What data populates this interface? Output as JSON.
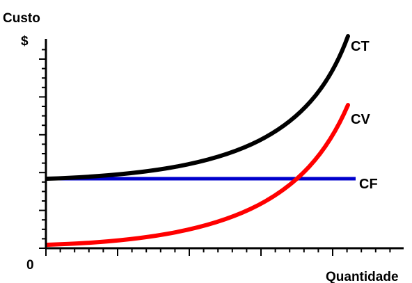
{
  "chart_data": {
    "type": "line",
    "title": "",
    "ylabel": "Custo",
    "ylabel_unit": "$",
    "xlabel": "Quantidade",
    "origin_label": "0",
    "axis_values_shown": false,
    "grid": false,
    "legend": "inline labels at line ends",
    "series": [
      {
        "name": "CT",
        "color": "#000000"
      },
      {
        "name": "CV",
        "color": "#ff0000"
      },
      {
        "name": "CF",
        "color": "#0000cc"
      }
    ]
  }
}
